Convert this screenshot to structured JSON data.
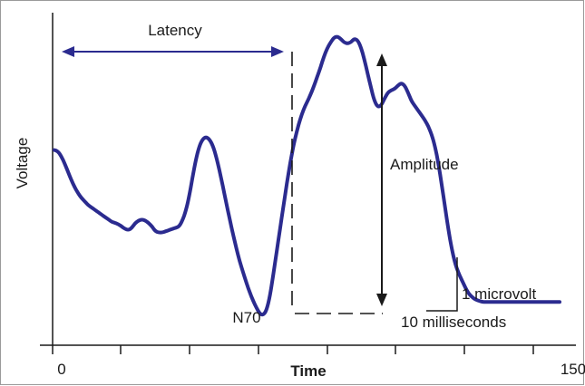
{
  "chart_data": {
    "type": "line",
    "xlabel": "Time",
    "ylabel": "Voltage",
    "xlim": [
      0,
      150
    ],
    "x_tick_labels": [
      "0",
      "150"
    ],
    "x_minor_ticks": [
      0,
      20,
      40,
      60,
      80,
      100,
      120,
      140
    ],
    "y_unit": "microvolt",
    "series": [
      {
        "x": [
          0,
          1,
          2,
          3,
          4,
          5,
          6,
          7,
          8,
          9,
          10,
          11,
          12,
          13,
          14,
          15,
          16,
          17,
          18,
          19,
          20,
          21,
          22,
          23,
          24,
          25,
          26,
          27,
          28,
          29,
          30,
          31,
          32,
          33,
          34,
          35,
          36,
          37,
          38,
          39,
          40,
          41,
          42,
          43,
          44,
          45,
          46,
          47,
          48,
          49,
          50,
          51,
          52,
          53,
          54,
          55,
          56,
          57,
          58,
          59,
          60,
          61,
          62,
          63,
          64,
          65,
          66,
          67,
          68,
          69,
          70,
          71,
          72,
          73,
          74,
          75,
          76,
          77,
          78,
          79,
          80,
          81,
          82,
          83,
          84,
          85,
          86,
          87,
          88,
          89,
          90,
          91,
          92,
          93,
          94,
          95,
          96,
          97,
          98,
          99,
          100,
          101,
          102,
          103,
          104,
          105,
          106,
          107,
          108,
          109,
          110,
          111,
          112,
          113,
          114,
          115,
          116,
          117,
          118,
          119,
          120,
          121,
          122,
          123,
          124,
          125,
          126,
          127,
          128,
          129,
          130,
          131,
          132,
          133,
          134,
          135,
          136,
          137,
          138,
          139,
          140,
          141,
          142,
          143,
          144,
          145,
          146,
          147,
          148,
          149,
          150
        ],
        "y": [
          6.7,
          6.6,
          6.2,
          5.6,
          4.9,
          4.2,
          3.6,
          3.1,
          2.7,
          2.4,
          2.1,
          1.9,
          1.7,
          1.5,
          1.3,
          1.1,
          0.9,
          0.7,
          0.6,
          0.5,
          0.3,
          0.1,
          0.0,
          0.2,
          0.6,
          0.8,
          0.9,
          0.8,
          0.6,
          0.3,
          -0.1,
          -0.2,
          -0.2,
          -0.1,
          0.0,
          0.1,
          0.2,
          0.3,
          0.8,
          1.6,
          2.8,
          4.4,
          5.9,
          7.0,
          7.6,
          7.8,
          7.6,
          7.1,
          6.2,
          5.0,
          3.7,
          2.3,
          1.0,
          -0.3,
          -1.5,
          -2.6,
          -3.5,
          -4.4,
          -5.2,
          -5.9,
          -6.5,
          -7.0,
          -7.1,
          -6.7,
          -5.5,
          -3.7,
          -1.8,
          0.1,
          2.0,
          3.9,
          5.6,
          7.1,
          8.3,
          9.3,
          10.1,
          10.7,
          11.3,
          12.0,
          12.8,
          13.6,
          14.5,
          15.2,
          15.7,
          16.1,
          16.2,
          16.0,
          15.7,
          15.6,
          15.7,
          16.0,
          15.9,
          15.3,
          14.3,
          13.1,
          11.9,
          10.8,
          10.3,
          10.4,
          11.0,
          11.5,
          11.7,
          11.8,
          12.1,
          12.3,
          12.1,
          11.5,
          10.8,
          10.4,
          10.0,
          9.6,
          9.2,
          8.7,
          8.0,
          7.0,
          5.6,
          3.8,
          1.9,
          0.0,
          -1.6,
          -2.8,
          -3.6,
          -4.2,
          -4.8,
          -5.3,
          -5.6,
          -5.8,
          -5.9,
          -6.0,
          -6.0,
          -6.0,
          -6.0,
          -6.0,
          -6.0,
          -6.0,
          -6.0,
          -6.0,
          -6.0,
          -6.0,
          -6.0,
          -6.0,
          -6.0,
          -6.0,
          -6.0,
          -6.0,
          -6.0,
          -6.0,
          -6.0,
          -6.0,
          -6.0,
          -6.0,
          -6.0
        ]
      }
    ],
    "annotations": {
      "latency_label": "Latency",
      "amplitude_label": "Amplitude",
      "peak_label": "N70",
      "scale_voltage_label": "1 microvolt",
      "scale_time_label": "10 milliseconds"
    }
  }
}
